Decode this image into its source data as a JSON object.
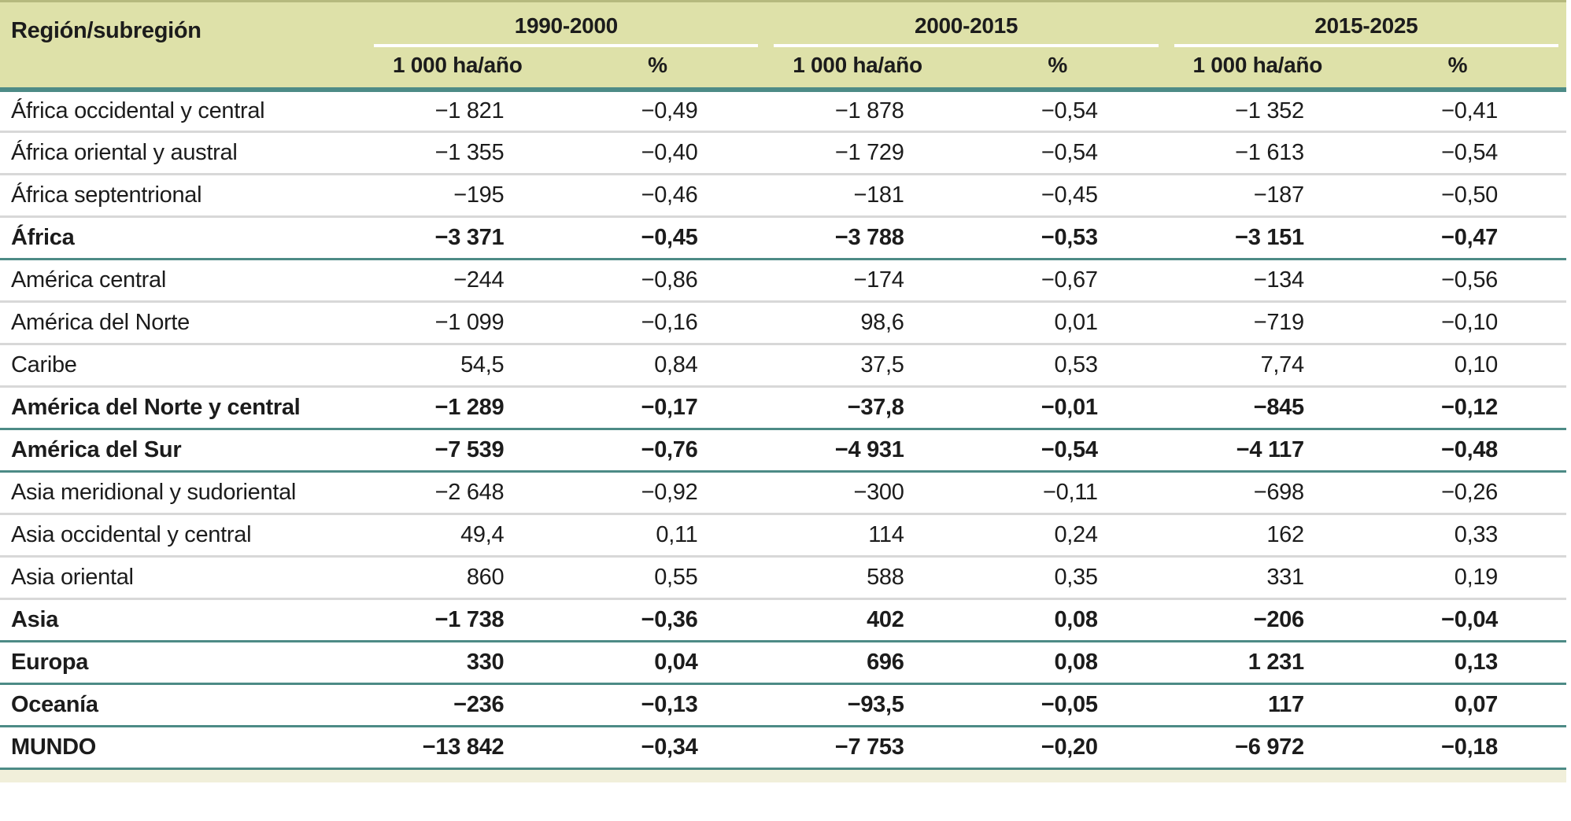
{
  "chart_data": {
    "type": "table",
    "region_column_header": "Región/subregión",
    "period_groups": [
      "1990-2000",
      "2000-2015",
      "2015-2025"
    ],
    "unit_headers": [
      "1 000 ha/año",
      "%"
    ],
    "rows": [
      {
        "region": "África occidental y central",
        "bold": false,
        "values": [
          "−1 821",
          "−0,49",
          "−1 878",
          "−0,54",
          "−1 352",
          "−0,41"
        ]
      },
      {
        "region": "África oriental y austral",
        "bold": false,
        "values": [
          "−1 355",
          "−0,40",
          "−1 729",
          "−0,54",
          "−1 613",
          "−0,54"
        ]
      },
      {
        "region": "África septentrional",
        "bold": false,
        "values": [
          "−195",
          "−0,46",
          "−181",
          "−0,45",
          "−187",
          "−0,50"
        ]
      },
      {
        "region": "África",
        "bold": true,
        "values": [
          "−3 371",
          "−0,45",
          "−3 788",
          "−0,53",
          "−3 151",
          "−0,47"
        ]
      },
      {
        "region": "América central",
        "bold": false,
        "values": [
          "−244",
          "−0,86",
          "−174",
          "−0,67",
          "−134",
          "−0,56"
        ]
      },
      {
        "region": "América del Norte",
        "bold": false,
        "values": [
          "−1 099",
          "−0,16",
          "98,6",
          "0,01",
          "−719",
          "−0,10"
        ]
      },
      {
        "region": "Caribe",
        "bold": false,
        "values": [
          "54,5",
          "0,84",
          "37,5",
          "0,53",
          "7,74",
          "0,10"
        ]
      },
      {
        "region": "América del Norte y central",
        "bold": true,
        "values": [
          "−1 289",
          "−0,17",
          "−37,8",
          "−0,01",
          "−845",
          "−0,12"
        ]
      },
      {
        "region": "América del Sur",
        "bold": true,
        "values": [
          "−7 539",
          "−0,76",
          "−4 931",
          "−0,54",
          "−4 117",
          "−0,48"
        ]
      },
      {
        "region": "Asia meridional y sudoriental",
        "bold": false,
        "values": [
          "−2 648",
          "−0,92",
          "−300",
          "−0,11",
          "−698",
          "−0,26"
        ]
      },
      {
        "region": "Asia occidental y central",
        "bold": false,
        "values": [
          "49,4",
          "0,11",
          "114",
          "0,24",
          "162",
          "0,33"
        ]
      },
      {
        "region": "Asia oriental",
        "bold": false,
        "values": [
          "860",
          "0,55",
          "588",
          "0,35",
          "331",
          "0,19"
        ]
      },
      {
        "region": "Asia",
        "bold": true,
        "values": [
          "−1 738",
          "−0,36",
          "402",
          "0,08",
          "−206",
          "−0,04"
        ]
      },
      {
        "region": "Europa",
        "bold": true,
        "values": [
          "330",
          "0,04",
          "696",
          "0,08",
          "1 231",
          "0,13"
        ]
      },
      {
        "region": "Oceanía",
        "bold": true,
        "values": [
          "−236",
          "−0,13",
          "−93,5",
          "−0,05",
          "117",
          "0,07"
        ]
      },
      {
        "region": "MUNDO",
        "bold": true,
        "values": [
          "−13 842",
          "−0,34",
          "−7 753",
          "−0,20",
          "−6 972",
          "−0,18"
        ]
      }
    ],
    "layout": {
      "grid": "horizontal-rules-only",
      "subtotal_rows_bold": true
    }
  },
  "colors": {
    "header_bg": "#dee1a9",
    "accent_teal": "#4d8b86",
    "row_divider_gray": "#d8d8d8",
    "header_top_edge": "#b5b97e",
    "footer_band": "#f1efda",
    "text": "#1c1c1c",
    "header_underline": "#ffffff"
  }
}
